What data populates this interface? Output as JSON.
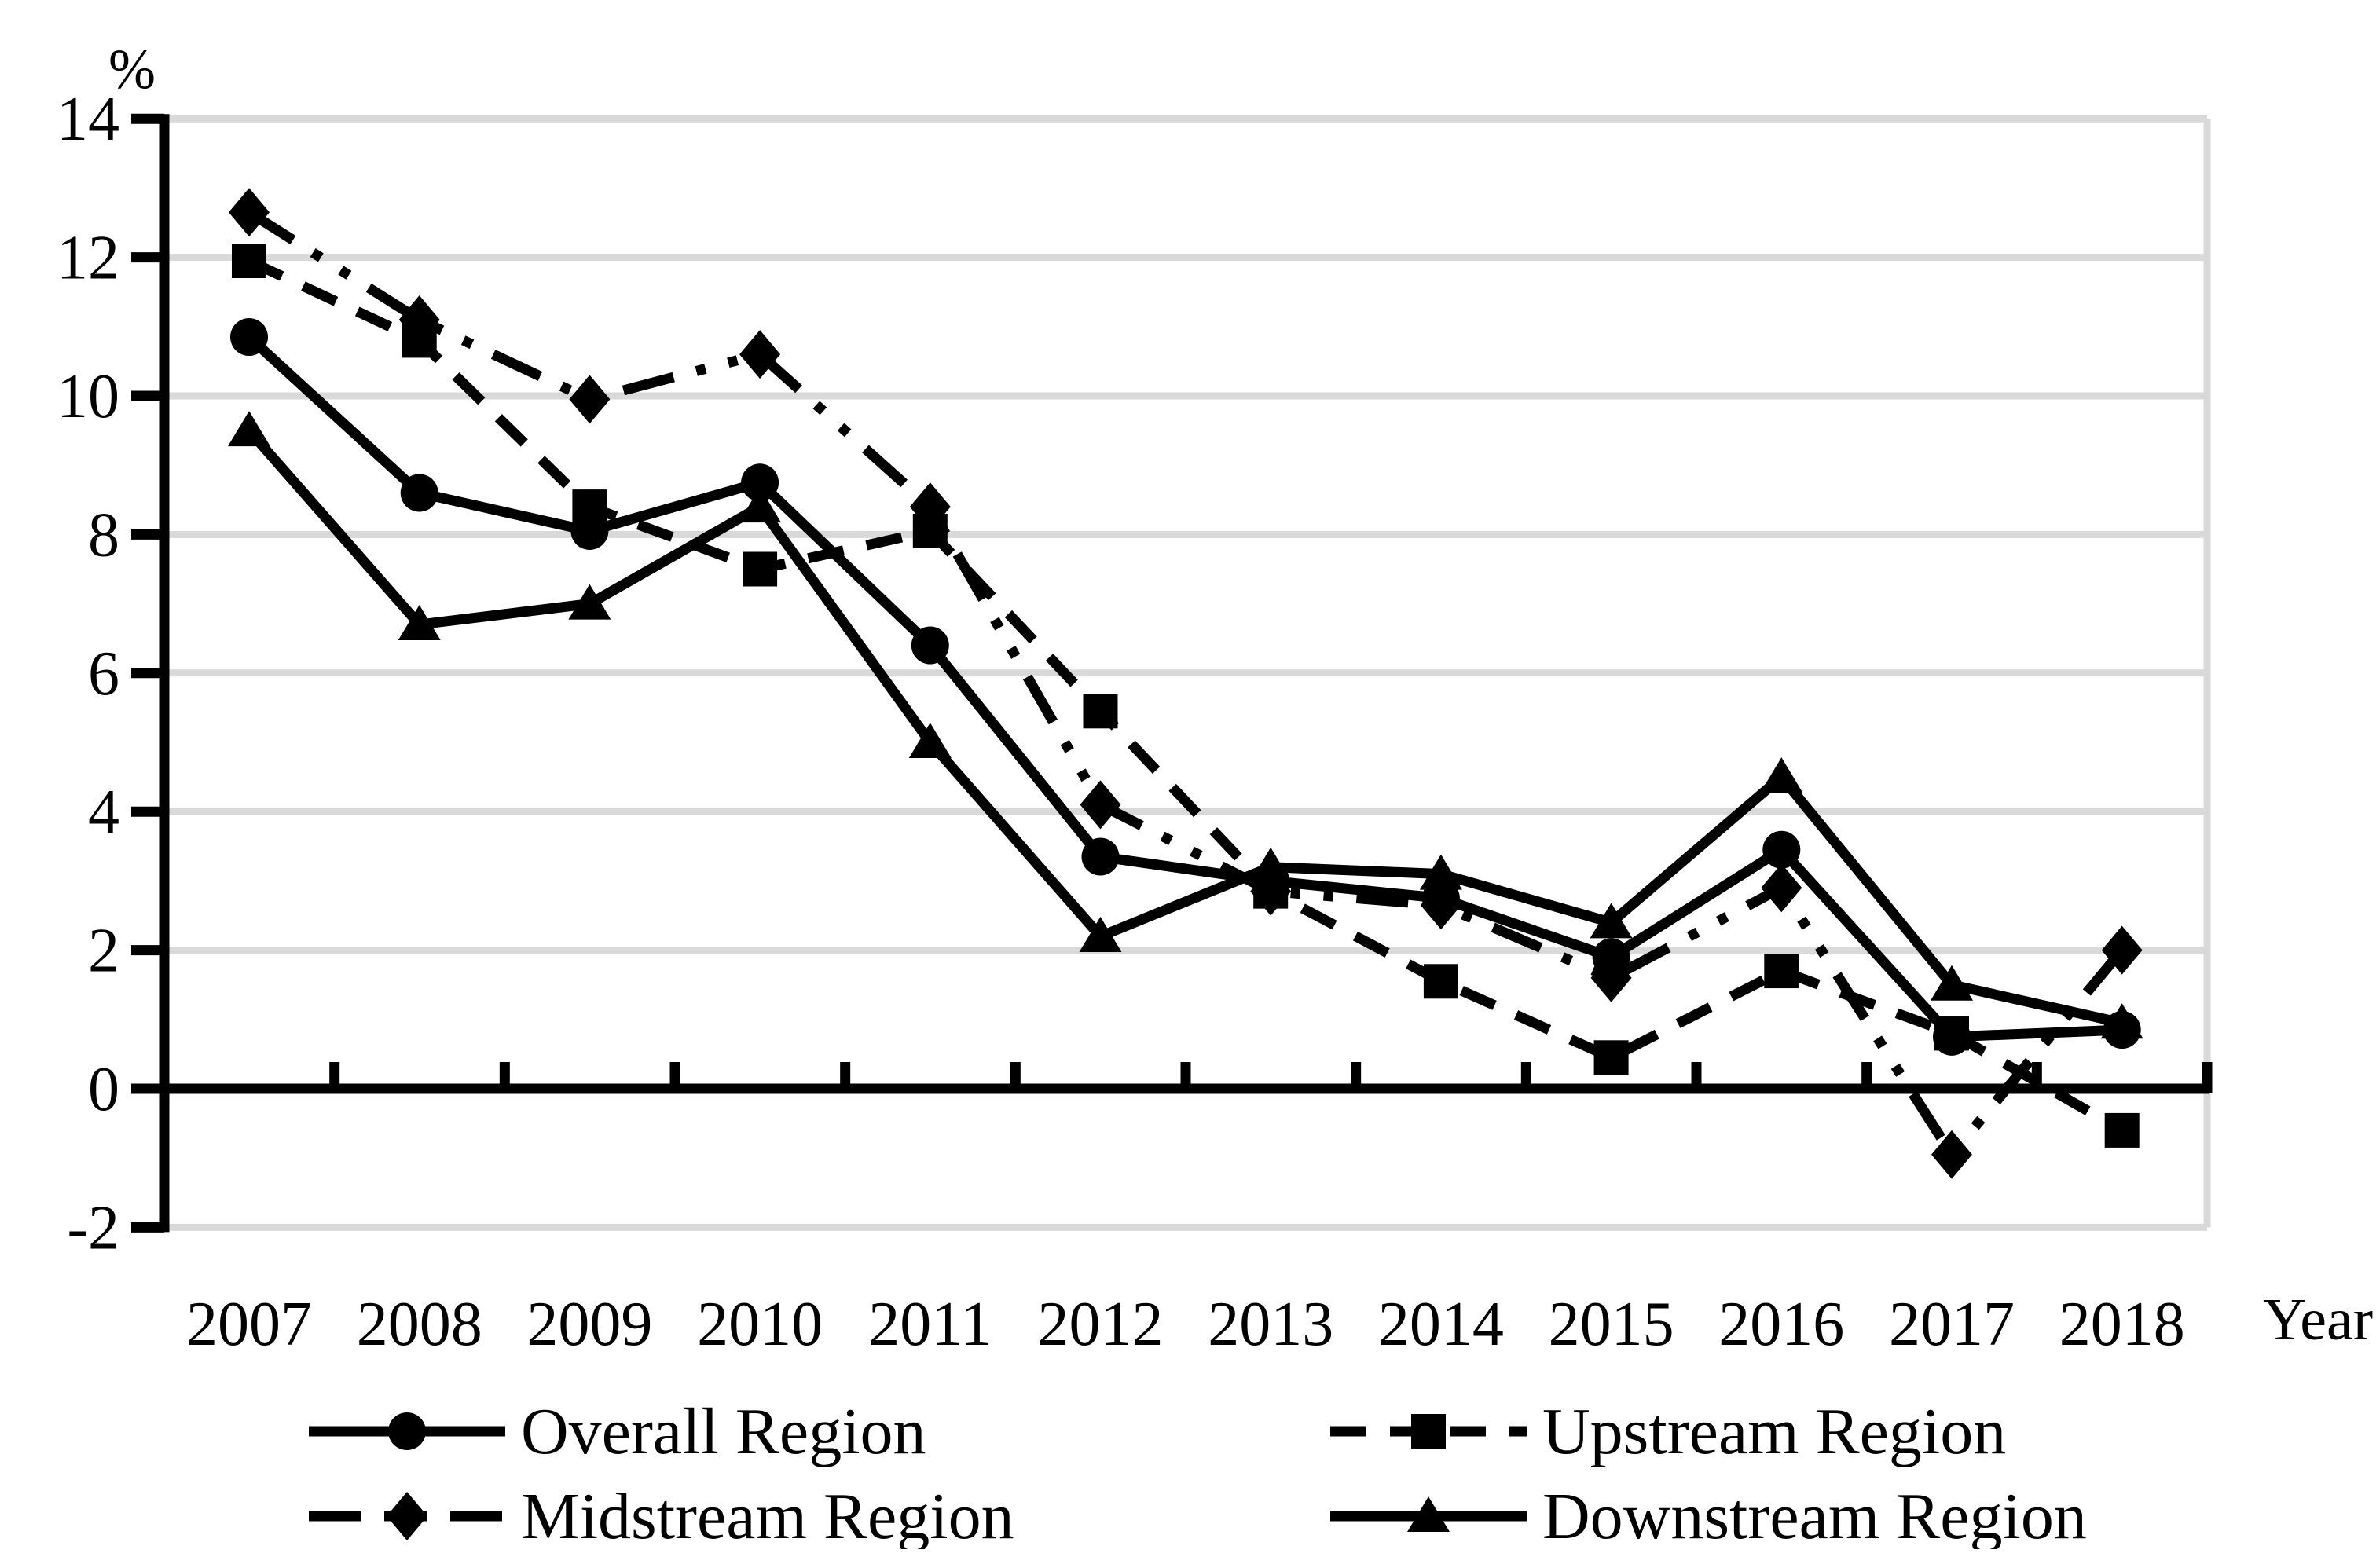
{
  "chart_data": {
    "type": "line",
    "title": "",
    "ylabel": "%",
    "xlabel": "Year",
    "x": [
      2007,
      2008,
      2009,
      2010,
      2011,
      2012,
      2013,
      2014,
      2015,
      2016,
      2017,
      2018
    ],
    "ylim": [
      -2,
      14
    ],
    "yticks": [
      14,
      12,
      10,
      8,
      6,
      4,
      2,
      0,
      -2
    ],
    "grid": true,
    "grid_color": "#d9d9d9",
    "line_color": "#000000",
    "background": "#ffffff",
    "legend_position": "bottom",
    "series": [
      {
        "name": "Overall Region",
        "marker": "circle",
        "line_style": "solid",
        "values": [
          10.85,
          8.6,
          8.05,
          8.75,
          6.4,
          3.35,
          3.0,
          2.75,
          1.9,
          3.45,
          0.75,
          0.85
        ]
      },
      {
        "name": "Upstream Region",
        "marker": "square",
        "line_style": "dashed",
        "values": [
          11.95,
          10.8,
          8.4,
          7.5,
          8.05,
          5.45,
          2.85,
          1.55,
          0.45,
          1.7,
          0.8,
          -0.6
        ]
      },
      {
        "name": "Midstream Region",
        "marker": "diamond",
        "line_style": "dash-dot-dot",
        "values": [
          12.65,
          11.1,
          9.95,
          10.6,
          8.4,
          4.1,
          2.85,
          2.65,
          1.6,
          2.9,
          -0.95,
          2.0
        ]
      },
      {
        "name": "Downstream Region",
        "marker": "triangle",
        "line_style": "solid",
        "values": [
          9.5,
          6.7,
          7.0,
          8.4,
          5.0,
          2.2,
          3.2,
          3.1,
          2.4,
          4.5,
          1.5,
          0.95
        ]
      }
    ],
    "legend_rows": [
      [
        "Overall Region",
        "Upstream Region"
      ],
      [
        "Midstream Region",
        "Downstream Region"
      ]
    ]
  }
}
